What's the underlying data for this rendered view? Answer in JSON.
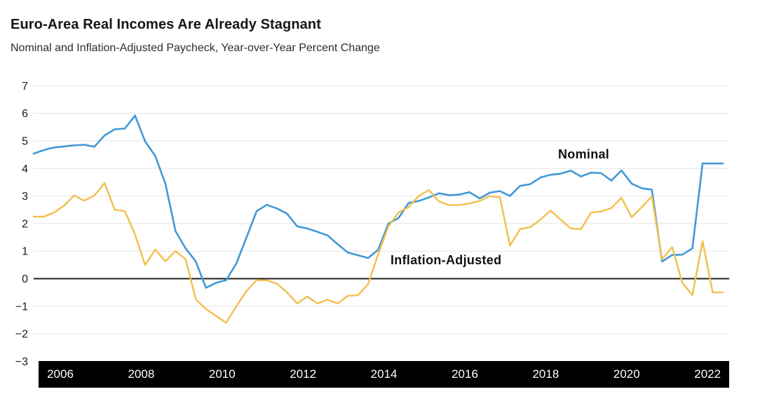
{
  "header": {
    "title": "Euro-Area Real Incomes Are Already Stagnant",
    "subtitle": "Nominal and Inflation-Adjusted Paycheck, Year-over-Year Percent Change"
  },
  "colors": {
    "nominal_line": "#4298D6",
    "inflation_adjusted_line": "#F2BF4C",
    "zero_line": "#1F1F1F",
    "gridline": "#E4E4E4",
    "axis_band_bg": "#000000",
    "axis_band_text": "#FFFFFF",
    "tick_label": "#1A1A1A"
  },
  "chart_data": {
    "type": "line",
    "title": "Euro-Area Real Incomes Are Already Stagnant",
    "subtitle": "Nominal and Inflation-Adjusted Paycheck, Year-over-Year Percent Change",
    "ylabel": "Year-over-Year Percent Change",
    "ylim": [
      -3,
      7
    ],
    "grid": "horizontal",
    "zero_baseline": true,
    "legend_position": "inline-annotations",
    "x_tick_labels": [
      "2006",
      "2008",
      "2010",
      "2012",
      "2014",
      "2016",
      "2018",
      "2020",
      "2022"
    ],
    "y_ticks": [
      7,
      6,
      5,
      4,
      3,
      2,
      1,
      0,
      -1,
      -2,
      -3
    ],
    "y_tick_labels": [
      "7",
      "6",
      "5",
      "4",
      "3",
      "2",
      "1",
      "0",
      "−1",
      "−2",
      "−3"
    ],
    "x_frequency": "quarterly",
    "series": [
      {
        "name": "Nominal",
        "color": "#4298D6",
        "values": [
          4.54,
          4.67,
          4.76,
          4.8,
          4.84,
          4.86,
          4.79,
          5.2,
          5.42,
          5.45,
          5.92,
          4.98,
          4.45,
          3.45,
          1.72,
          1.1,
          0.62,
          -0.33,
          -0.15,
          -0.05,
          0.55,
          1.5,
          2.45,
          2.68,
          2.55,
          2.36,
          1.9,
          1.82,
          1.7,
          1.57,
          1.25,
          0.95,
          0.85,
          0.75,
          1.05,
          2.0,
          2.2,
          2.75,
          2.82,
          2.95,
          3.1,
          3.03,
          3.05,
          3.14,
          2.91,
          3.12,
          3.18,
          3.0,
          3.37,
          3.43,
          3.67,
          3.77,
          3.81,
          3.92,
          3.71,
          3.85,
          3.83,
          3.56,
          3.93,
          3.45,
          3.28,
          3.23,
          0.62,
          0.86,
          0.87,
          1.1,
          4.18,
          4.18,
          4.18
        ]
      },
      {
        "name": "Inflation-Adjusted",
        "color": "#F2BF4C",
        "values": [
          2.25,
          2.25,
          2.4,
          2.65,
          3.02,
          2.83,
          3.02,
          3.47,
          2.5,
          2.45,
          1.6,
          0.5,
          1.05,
          0.63,
          1.0,
          0.7,
          -0.75,
          -1.1,
          -1.35,
          -1.6,
          -1.0,
          -0.45,
          -0.05,
          -0.06,
          -0.18,
          -0.5,
          -0.9,
          -0.65,
          -0.9,
          -0.76,
          -0.9,
          -0.62,
          -0.6,
          -0.2,
          0.9,
          1.9,
          2.4,
          2.6,
          3.0,
          3.22,
          2.8,
          2.67,
          2.67,
          2.73,
          2.82,
          3.0,
          2.95,
          1.2,
          1.8,
          1.87,
          2.14,
          2.47,
          2.14,
          1.82,
          1.8,
          2.4,
          2.44,
          2.56,
          2.94,
          2.23,
          2.6,
          2.99,
          0.7,
          1.15,
          -0.15,
          -0.6,
          1.36,
          -0.5,
          -0.5
        ]
      }
    ]
  }
}
